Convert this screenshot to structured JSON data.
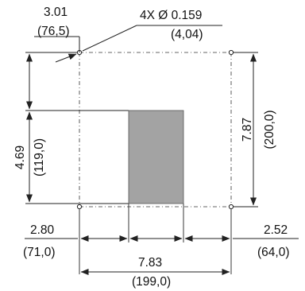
{
  "colors": {
    "line": "#222222",
    "cutout_fill": "#a3a3a3",
    "background": "#ffffff"
  },
  "icons": {
    "arrowhead": "dimension-arrow-icon",
    "hole": "mounting-hole-icon"
  },
  "labels": {
    "hole_note": "4X Ø 0.159",
    "hole_note_mm": "(4,04)",
    "hole_offset_in": "3.01",
    "hole_offset_mm": "(76,5)",
    "height_in": "7.87",
    "height_mm": "(200,0)",
    "cutout_height_in": "4.69",
    "cutout_height_mm": "(119,0)",
    "left_offset_in": "2.80",
    "left_offset_mm": "(71,0)",
    "right_offset_in": "2.52",
    "right_offset_mm": "(64,0)",
    "width_in": "7.83",
    "width_mm": "(199,0)"
  }
}
